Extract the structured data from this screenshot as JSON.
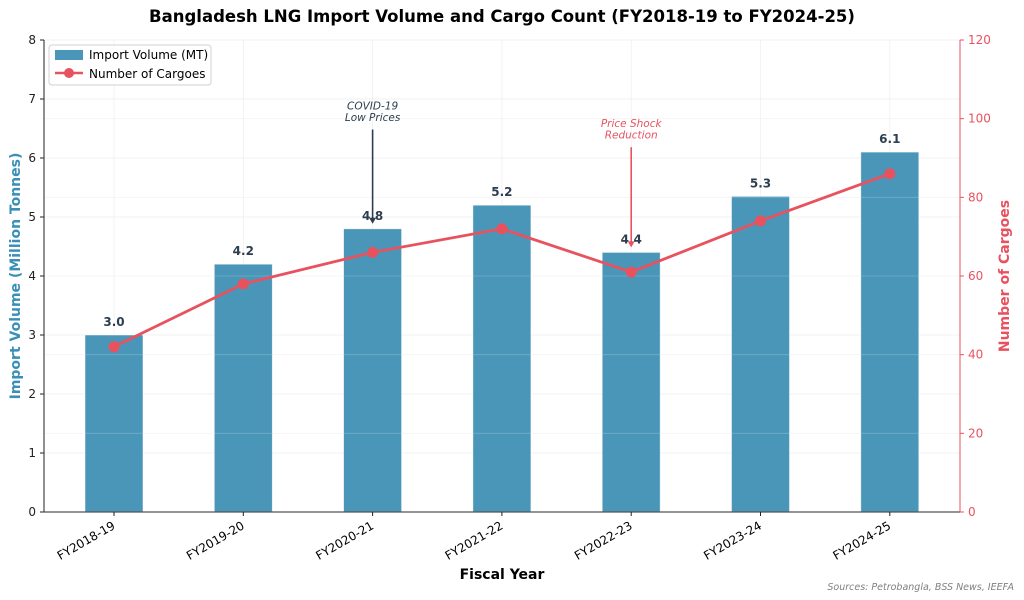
{
  "chart_data": {
    "type": "bar",
    "title": "Bangladesh LNG Import Volume and Cargo Count (FY2018-19 to FY2024-25)",
    "xlabel": "Fiscal Year",
    "ylabel": "Import Volume (Million Tonnes)",
    "y2label": "Number of Cargoes",
    "categories": [
      "FY2018-19",
      "FY2019-20",
      "FY2020-21",
      "FY2021-22",
      "FY2022-23",
      "FY2023-24",
      "FY2024-25"
    ],
    "series": [
      {
        "name": "Import Volume (MT)",
        "type": "bar",
        "axis": "left",
        "color": "#4a96b8",
        "values": [
          3.0,
          4.2,
          4.8,
          5.2,
          4.4,
          5.35,
          6.1
        ],
        "labels": [
          "3.0",
          "4.2",
          "4.8",
          "5.2",
          "4.4",
          "5.3",
          "6.1"
        ]
      },
      {
        "name": "Number of Cargoes",
        "type": "line",
        "axis": "right",
        "color": "#e8525f",
        "values": [
          42,
          58,
          66,
          72,
          61,
          74,
          86
        ]
      }
    ],
    "ylim": [
      0,
      8
    ],
    "yticks": [
      0,
      1,
      2,
      3,
      4,
      5,
      6,
      7,
      8
    ],
    "y2lim": [
      0,
      120
    ],
    "y2ticks": [
      0,
      20,
      40,
      60,
      80,
      100,
      120
    ],
    "grid": true,
    "legend": "top-left",
    "annotations": [
      {
        "lines": [
          "COVID-19",
          "Low Prices"
        ],
        "category_index": 2,
        "target_value": 4.8,
        "text_value": 6.5,
        "color": "#2c3e50"
      },
      {
        "lines": [
          "Price Shock",
          "Reduction"
        ],
        "category_index": 4,
        "target_value": 4.4,
        "text_value": 6.2,
        "color": "#e8525f"
      }
    ],
    "source": "Sources: Petrobangla, BSS News, IEEFA"
  }
}
